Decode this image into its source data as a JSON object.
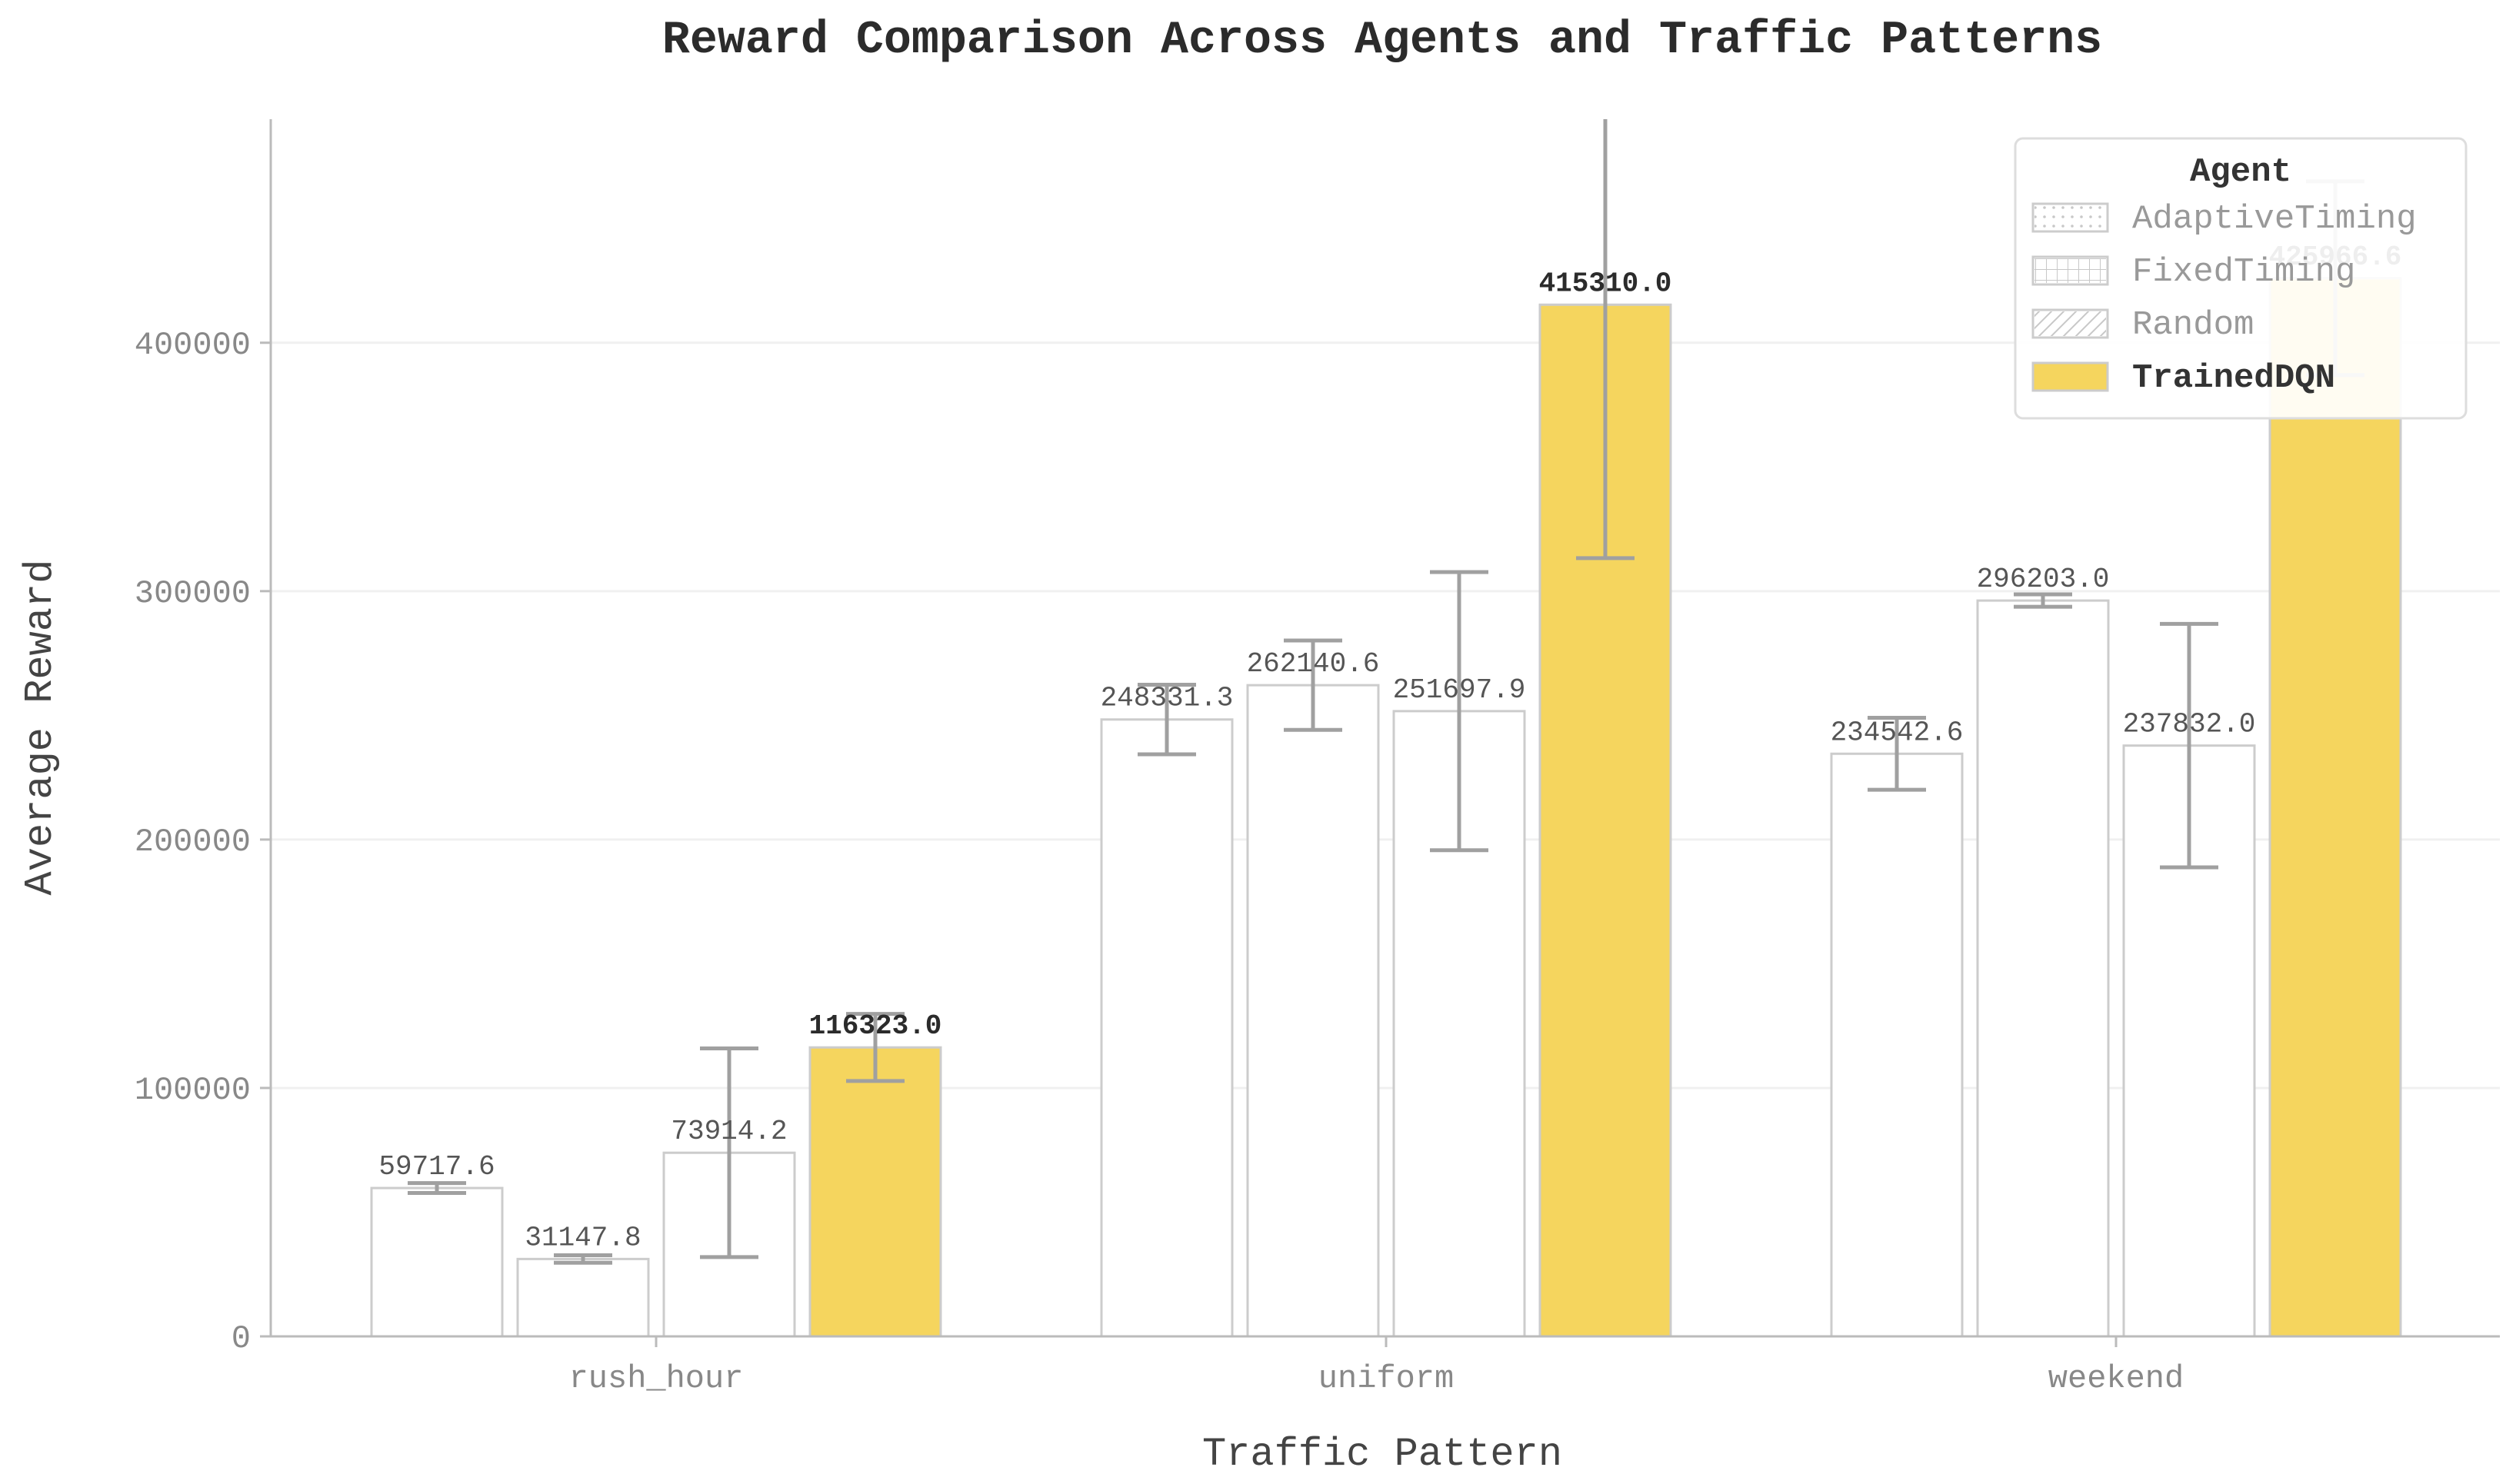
{
  "chart_data": {
    "type": "bar",
    "title": "Reward Comparison Across Agents and Traffic Patterns",
    "xlabel": "Traffic Pattern",
    "ylabel": "Average Reward",
    "categories": [
      "rush_hour",
      "uniform",
      "weekend"
    ],
    "ylim": [
      0,
      490000
    ],
    "yticks": [
      0,
      100000,
      200000,
      300000,
      400000
    ],
    "ytick_labels": [
      "0",
      "100000",
      "200000",
      "300000",
      "400000"
    ],
    "grid": "horizontal",
    "legend_title": "Agent",
    "legend_placement": "top-right",
    "series": [
      {
        "name": "AdaptiveTiming",
        "values": [
          59717.6,
          248331.3,
          234542.6
        ],
        "value_labels": [
          "59717.6",
          "248331.3",
          "234542.6"
        ],
        "error": [
          2000,
          14000,
          14500
        ],
        "pattern": "dots",
        "color": "#ffffff"
      },
      {
        "name": "FixedTiming",
        "values": [
          31147.8,
          262140.6,
          296203.0
        ],
        "value_labels": [
          "31147.8",
          "262140.6",
          "296203.0"
        ],
        "error": [
          1500,
          18000,
          2500
        ],
        "pattern": "grid",
        "color": "#ffffff"
      },
      {
        "name": "Random",
        "values": [
          73914.2,
          251697.9,
          237832.0
        ],
        "value_labels": [
          "73914.2",
          "251697.9",
          "237832.0"
        ],
        "error": [
          42000,
          56000,
          49000
        ],
        "pattern": "hatch",
        "color": "#ffffff"
      },
      {
        "name": "TrainedDQN",
        "values": [
          116323.0,
          415310.0,
          425966.6
        ],
        "value_labels": [
          "116323.0",
          "415310.0",
          "425966.6"
        ],
        "error": [
          13500,
          102000,
          39000
        ],
        "pattern": "solid",
        "color": "#f5d55e",
        "highlight": true
      }
    ],
    "colors": {
      "highlight_fill": "#f5d55e",
      "bar_edge": "#cccccc",
      "error_bar": "#a0a0a0",
      "grid": "#f0f0f0",
      "axis": "#bbbbbb"
    }
  }
}
